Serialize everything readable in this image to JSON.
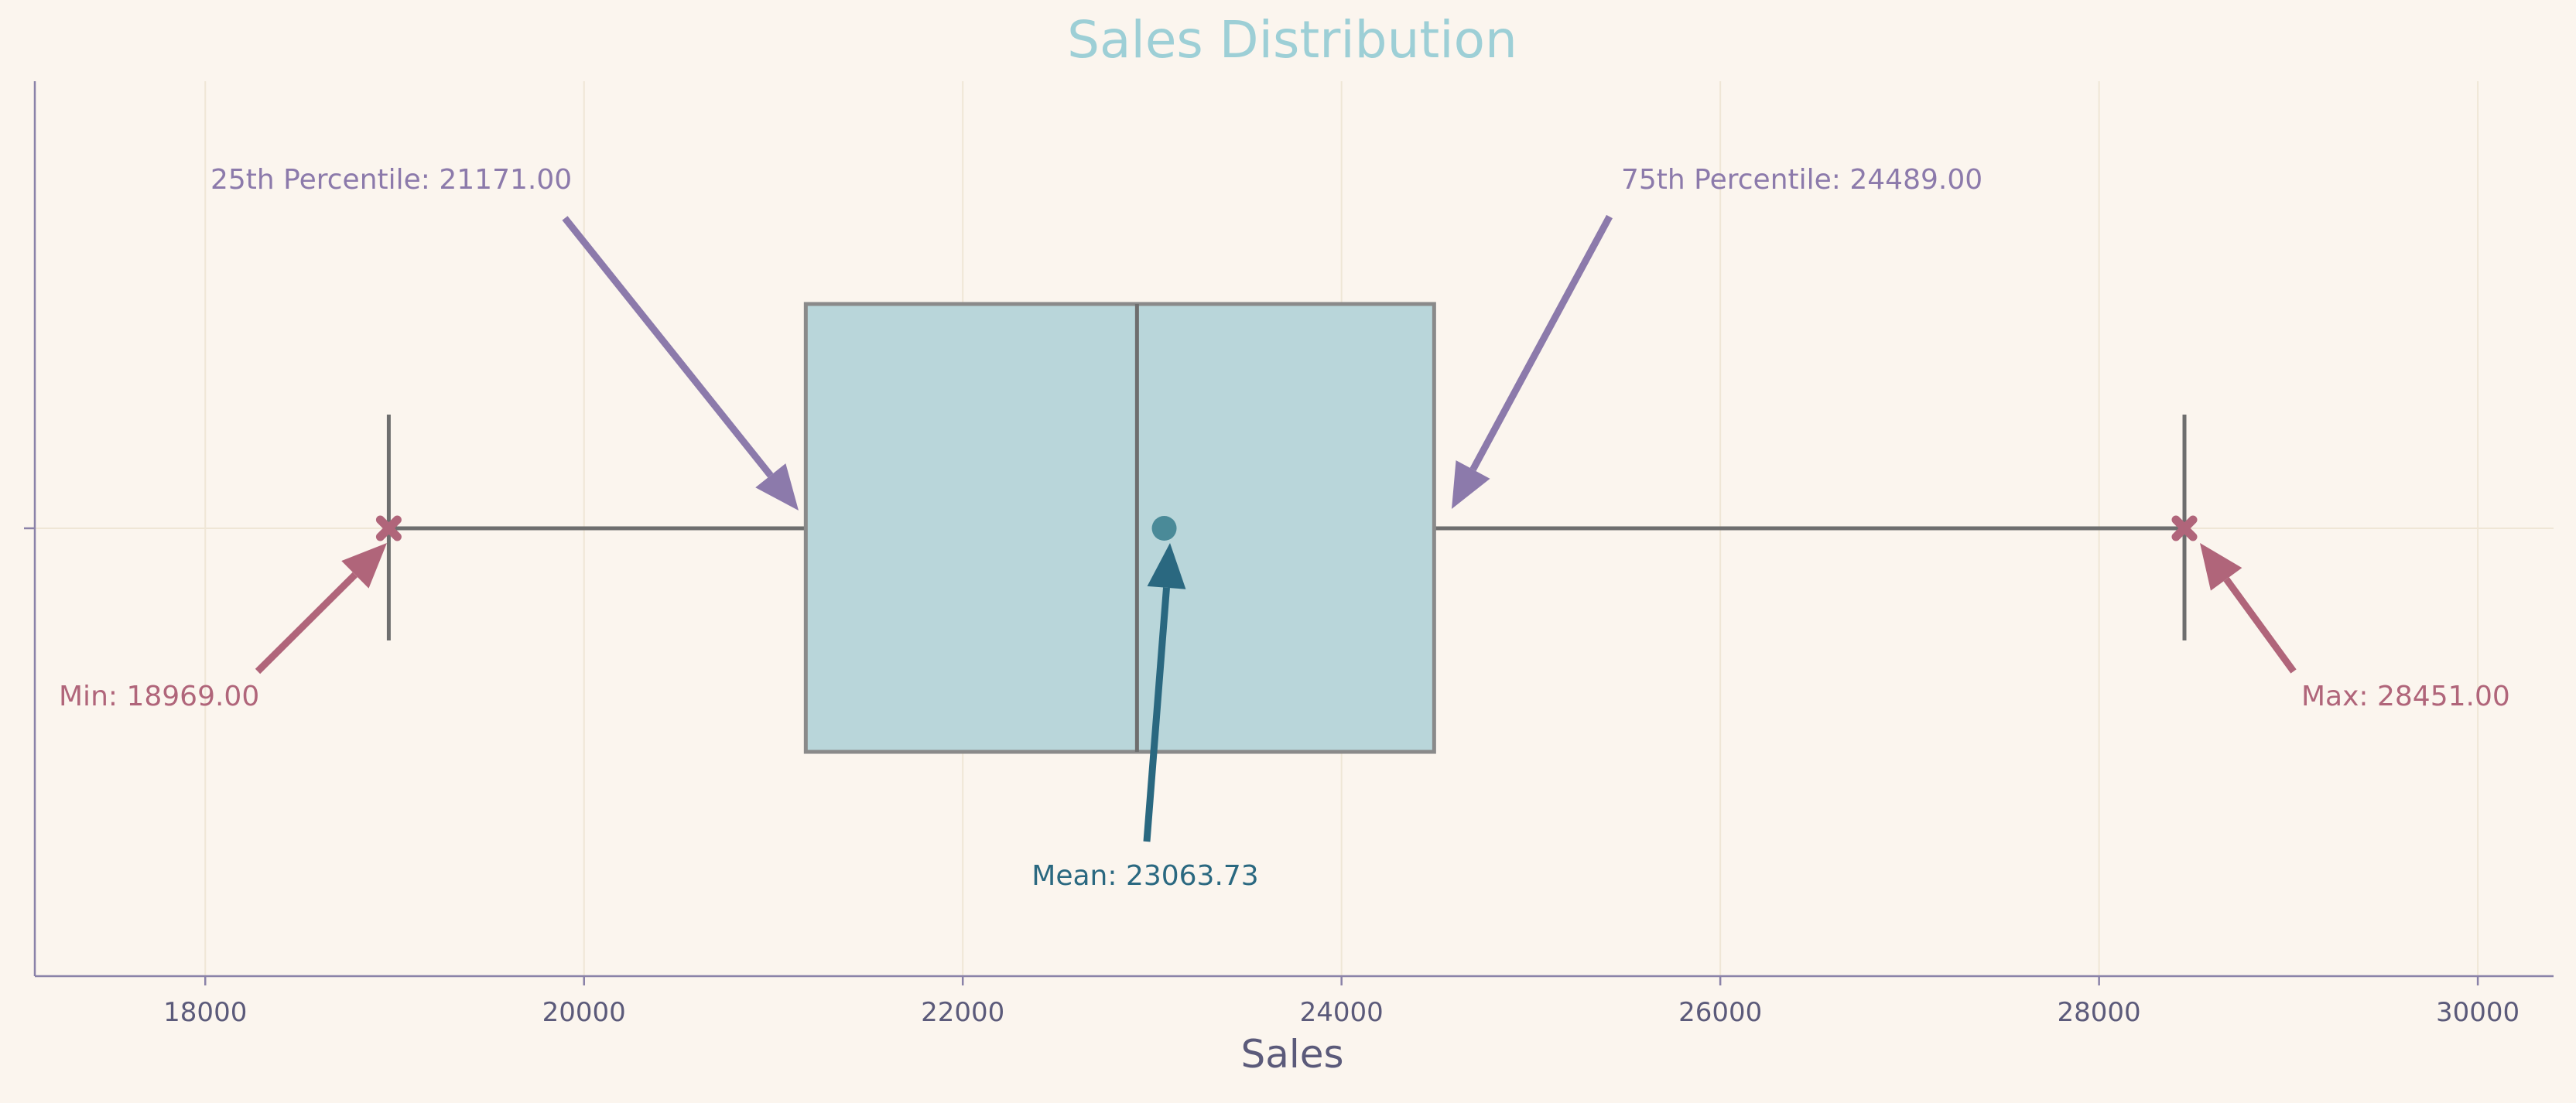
{
  "chart_data": {
    "type": "box",
    "title": "Sales Distribution",
    "xlabel": "Sales",
    "ylabel": "",
    "xlim": [
      17100,
      30400
    ],
    "xticks": [
      18000,
      20000,
      22000,
      24000,
      26000,
      28000,
      30000
    ],
    "grid": true,
    "min": 18969.0,
    "q1": 21171.0,
    "median": 22920,
    "q3": 24489.0,
    "max": 28451.0,
    "mean": 23063.73,
    "annotations": {
      "q1": "25th Percentile: 21171.00",
      "q3": "75th Percentile: 24489.00",
      "mean": "Mean: 23063.73",
      "min": "Min: 18969.00",
      "max": "Max: 28451.00"
    },
    "colors": {
      "background": "#fbf5ee",
      "title": "#9dcfd6",
      "box_fill": "#b9d6da",
      "box_edge": "#8a8a8a",
      "whisker": "#6e6e6e",
      "quartile_annotation": "#8c7aab",
      "mean_annotation": "#2a6880",
      "mean_marker": "#4a8a98",
      "extreme_annotation": "#b0657a",
      "axis": "#8a82a8",
      "grid": "#efe6d6",
      "tick_text": "#5b5a7a"
    }
  }
}
